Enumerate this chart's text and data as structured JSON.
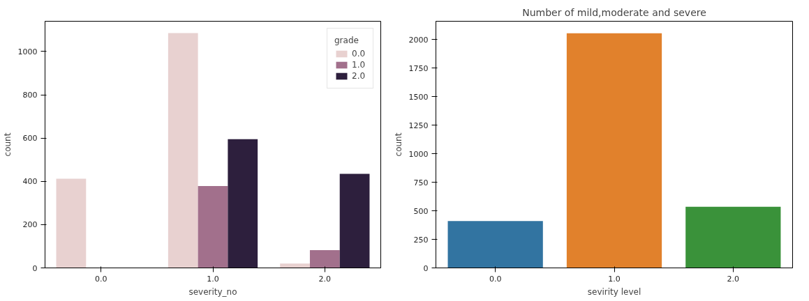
{
  "chart_data": [
    {
      "type": "bar",
      "xlabel": "severity_no",
      "ylabel": "count",
      "legend_title": "grade",
      "legend": "top right",
      "grid": false,
      "categories": [
        "0.0",
        "1.0",
        "2.0"
      ],
      "ylim": [
        0,
        1140
      ],
      "yticks": [
        0,
        200,
        400,
        600,
        800,
        1000
      ],
      "series": [
        {
          "name": "0.0",
          "color": "#e8d1d0",
          "values": [
            412,
            1085,
            20
          ]
        },
        {
          "name": "1.0",
          "color": "#a2708c",
          "values": [
            null,
            378,
            82
          ]
        },
        {
          "name": "2.0",
          "color": "#2d1f3d",
          "values": [
            null,
            595,
            435
          ]
        }
      ]
    },
    {
      "type": "bar",
      "title": "Number of mild,moderate and severe",
      "xlabel": "sevirity level",
      "ylabel": "count",
      "grid": false,
      "categories": [
        "0.0",
        "1.0",
        "2.0"
      ],
      "values": [
        410,
        2055,
        536
      ],
      "colors": [
        "#3274a1",
        "#e1812c",
        "#3a923a"
      ],
      "ylim": [
        0,
        2160
      ],
      "yticks": [
        0,
        250,
        500,
        750,
        1000,
        1250,
        1500,
        1750,
        2000
      ]
    }
  ]
}
